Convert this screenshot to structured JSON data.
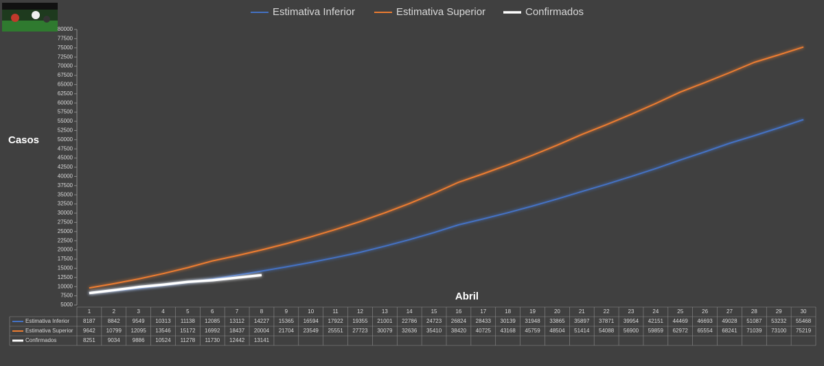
{
  "chart_data": {
    "type": "line",
    "x_label": "Abril",
    "y_label": "Casos",
    "categories": [
      "1",
      "2",
      "3",
      "4",
      "5",
      "6",
      "7",
      "8",
      "9",
      "10",
      "11",
      "12",
      "13",
      "14",
      "15",
      "16",
      "17",
      "18",
      "19",
      "20",
      "21",
      "22",
      "23",
      "24",
      "25",
      "26",
      "27",
      "28",
      "29",
      "30"
    ],
    "series": [
      {
        "name": "Estimativa Inferior",
        "color": "#4472c4",
        "values": [
          8187,
          8842,
          9549,
          10313,
          11138,
          12085,
          13112,
          14227,
          15365,
          16594,
          17922,
          19355,
          21001,
          22786,
          24723,
          26824,
          28433,
          30139,
          31948,
          33865,
          35897,
          37871,
          39954,
          42151,
          44469,
          46693,
          49028,
          51087,
          53232,
          55468
        ]
      },
      {
        "name": "Estimativa Superior",
        "color": "#ed7d31",
        "values": [
          9642,
          10799,
          12095,
          13546,
          15172,
          16992,
          18437,
          20004,
          21704,
          23549,
          25551,
          27723,
          30079,
          32636,
          35410,
          38420,
          40725,
          43168,
          45759,
          48504,
          51414,
          54088,
          56900,
          59859,
          62972,
          65554,
          68241,
          71039,
          73100,
          75219
        ]
      },
      {
        "name": "Confirmados",
        "color": "#ffffff",
        "values": [
          8251,
          9034,
          9886,
          10524,
          11278,
          11730,
          12442,
          13141,
          null,
          null,
          null,
          null,
          null,
          null,
          null,
          null,
          null,
          null,
          null,
          null,
          null,
          null,
          null,
          null,
          null,
          null,
          null,
          null,
          null,
          null
        ]
      }
    ],
    "ylim": [
      5000,
      80000
    ],
    "yticks": [
      5000,
      7500,
      10000,
      12500,
      15000,
      17500,
      20000,
      22500,
      25000,
      27500,
      30000,
      32500,
      35000,
      37500,
      40000,
      42500,
      45000,
      47500,
      50000,
      52500,
      55000,
      57500,
      60000,
      62500,
      65000,
      67500,
      70000,
      72500,
      75000,
      77500,
      80000
    ],
    "legend": "top",
    "data_table": true
  }
}
